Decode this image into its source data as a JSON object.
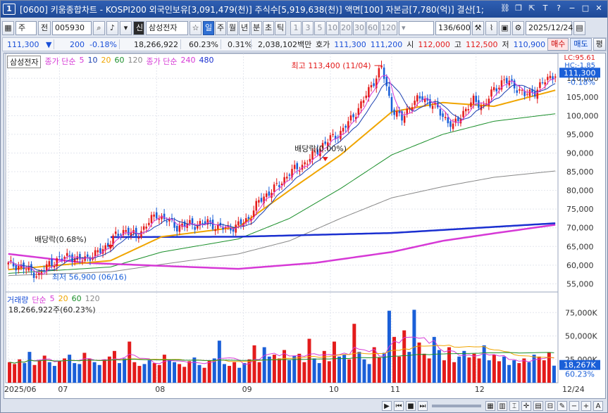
{
  "window": {
    "number": "1",
    "title": "[0600] 키움종합차트 - KOSPI200 외국인보유[3,091,479(천)] 주식수[5,919,638(천)] 액면[100] 자본금[7,780(억)] 결산[1;"
  },
  "toolbar": {
    "mode": "주",
    "all": "전",
    "code": "005930",
    "sin": "신",
    "name": "삼성전자",
    "periods": [
      "일",
      "주",
      "월",
      "년",
      "분",
      "초",
      "틱"
    ],
    "active_period": "일",
    "intervals": [
      "1",
      "3",
      "5",
      "10",
      "20",
      "30",
      "60",
      "120"
    ],
    "count": "136",
    "count_total": "/600",
    "date": "2025/12/24"
  },
  "quote": {
    "price": "111,300",
    "arrow": "▼",
    "change": "200",
    "change_pct": "-0.18%",
    "volume": "18,266,922",
    "volume_pct": "60.23%",
    "turnover_pct": "0.31%",
    "amount": "2,038,102백만",
    "hoga_label": "호가",
    "bid": "111,300",
    "ask": "111,200",
    "open_label": "시",
    "open": "112,000",
    "high_label": "고",
    "high": "112,500",
    "low_label": "저",
    "low": "110,900",
    "buy": "매수",
    "sell": "매도",
    "eval": "평"
  },
  "legend_price": {
    "name": "삼성전자",
    "ma_title": "종가 단순",
    "periods": [
      "5",
      "10",
      "20",
      "60",
      "120"
    ],
    "ma2_title": "종가 단순",
    "periods2": [
      "240",
      "480"
    ],
    "lc": "LC:95.61",
    "hc": "HC:-1.85"
  },
  "legend_volume": {
    "title": "거래량",
    "ma_title": "단순",
    "periods": [
      "5",
      "20",
      "60",
      "120"
    ],
    "value": "18,266,922주(60.23%)"
  },
  "annotations": {
    "high": "최고 113,400 (11/04)",
    "low": "최저 56,900 (06/16)",
    "div1": "배당락(0.68%)",
    "div2": "배당락(0.00%)"
  },
  "price_axis": {
    "ticks": [
      "110,000",
      "105,000",
      "100,000",
      "95,000",
      "90,000",
      "85,000",
      "80,000",
      "75,000",
      "70,000",
      "65,000",
      "60,000",
      "55,000"
    ],
    "current": "111,300",
    "current_pct": "-0.18%"
  },
  "volume_axis": {
    "ticks": [
      "75,000K",
      "50,000K",
      "25,000K"
    ],
    "current": "18,267K",
    "current_pct": "60.23%"
  },
  "date_axis": {
    "labels": [
      "2025/06",
      "07",
      "08",
      "09",
      "10",
      "11",
      "12"
    ],
    "end": "12/24"
  },
  "colors": {
    "up": "#e31b1b",
    "down": "#1a5fd8",
    "ma5": "#d639d6",
    "ma10": "#1a3fb0",
    "ma20": "#f0a500",
    "ma60": "#1a8f2a",
    "ma120": "#888888",
    "ma240": "#d639d6",
    "ma480": "#1a2fd0"
  },
  "chart_data": {
    "type": "candlestick",
    "period": "daily",
    "x_range": [
      "2025/06",
      "2025/12/24"
    ],
    "y_range": [
      53000,
      114000
    ],
    "last": {
      "open": 112000,
      "high": 112500,
      "low": 110900,
      "close": 111300,
      "volume": 18266922
    },
    "highest": {
      "value": 113400,
      "date": "11/04"
    },
    "lowest": {
      "value": 56900,
      "date": "06/16"
    },
    "close_path": [
      [
        0,
        60200
      ],
      [
        4,
        59800
      ],
      [
        8,
        58600
      ],
      [
        12,
        57200
      ],
      [
        16,
        60400
      ],
      [
        20,
        61500
      ],
      [
        24,
        62800
      ],
      [
        27,
        61200
      ],
      [
        30,
        61900
      ],
      [
        34,
        62800
      ],
      [
        38,
        64900
      ],
      [
        42,
        67800
      ],
      [
        46,
        69500
      ],
      [
        50,
        67500
      ],
      [
        54,
        70900
      ],
      [
        58,
        73500
      ],
      [
        62,
        72000
      ],
      [
        66,
        70200
      ],
      [
        70,
        71000
      ],
      [
        74,
        70800
      ],
      [
        78,
        71500
      ],
      [
        82,
        70100
      ],
      [
        86,
        69800
      ],
      [
        90,
        70600
      ],
      [
        94,
        72500
      ],
      [
        98,
        77000
      ],
      [
        102,
        79500
      ],
      [
        106,
        81500
      ],
      [
        110,
        84800
      ],
      [
        114,
        86200
      ],
      [
        118,
        88400
      ],
      [
        122,
        91600
      ],
      [
        126,
        93800
      ],
      [
        130,
        95500
      ],
      [
        134,
        99000
      ],
      [
        138,
        103000
      ],
      [
        142,
        108000
      ],
      [
        146,
        113000
      ],
      [
        150,
        102000
      ],
      [
        154,
        99000
      ],
      [
        158,
        103500
      ],
      [
        162,
        104800
      ],
      [
        166,
        103000
      ],
      [
        170,
        100000
      ],
      [
        174,
        97000
      ],
      [
        178,
        101000
      ],
      [
        182,
        104000
      ],
      [
        186,
        102500
      ],
      [
        190,
        107000
      ],
      [
        194,
        109500
      ],
      [
        198,
        108000
      ],
      [
        202,
        105500
      ],
      [
        206,
        106500
      ],
      [
        210,
        109300
      ],
      [
        214,
        111300
      ]
    ],
    "ma_series": {
      "ma20": [
        [
          0,
          58800
        ],
        [
          40,
          61200
        ],
        [
          60,
          67600
        ],
        [
          90,
          70200
        ],
        [
          110,
          80000
        ],
        [
          130,
          89500
        ],
        [
          150,
          101000
        ],
        [
          170,
          103500
        ],
        [
          190,
          102500
        ],
        [
          214,
          106800
        ]
      ],
      "ma60": [
        [
          0,
          57800
        ],
        [
          40,
          59500
        ],
        [
          60,
          63500
        ],
        [
          90,
          67000
        ],
        [
          110,
          72500
        ],
        [
          130,
          80500
        ],
        [
          150,
          89500
        ],
        [
          170,
          95000
        ],
        [
          190,
          98500
        ],
        [
          214,
          100500
        ]
      ],
      "ma120": [
        [
          0,
          57200
        ],
        [
          40,
          58200
        ],
        [
          60,
          60200
        ],
        [
          90,
          63000
        ],
        [
          110,
          66500
        ],
        [
          130,
          72500
        ],
        [
          150,
          78000
        ],
        [
          170,
          81000
        ],
        [
          190,
          83500
        ],
        [
          214,
          85200
        ]
      ],
      "ma240": [
        [
          0,
          63000
        ],
        [
          30,
          60600
        ],
        [
          60,
          59800
        ],
        [
          90,
          59000
        ],
        [
          120,
          60600
        ],
        [
          150,
          63500
        ],
        [
          170,
          66500
        ],
        [
          190,
          68500
        ],
        [
          214,
          70800
        ]
      ],
      "ma480": [
        [
          40,
          67500
        ],
        [
          90,
          67600
        ],
        [
          150,
          68600
        ],
        [
          214,
          71200
        ]
      ]
    },
    "volume_k": [
      22000,
      20000,
      25000,
      21000,
      33000,
      19000,
      24000,
      29000,
      22000,
      18000,
      23000,
      26000,
      30000,
      21000,
      20000,
      32000,
      26000,
      22000,
      19000,
      25000,
      28000,
      34000,
      21000,
      26000,
      44000,
      22000,
      18000,
      20000,
      24000,
      21000,
      19000,
      30000,
      25000,
      22000,
      20000,
      17000,
      23000,
      27000,
      19000,
      16000,
      24000,
      26000,
      45000,
      20000,
      18000,
      22000,
      16000,
      21000,
      25000,
      40000,
      22000,
      38000,
      28000,
      30000,
      26000,
      35000,
      24000,
      29000,
      31000,
      22000,
      47000,
      26000,
      21000,
      34000,
      23000,
      44000,
      28000,
      30000,
      25000,
      63000,
      33000,
      25000,
      20000,
      38000,
      27000,
      32000,
      77000,
      49000,
      28000,
      56000,
      33000,
      78000,
      43000,
      31000,
      26000,
      49000,
      35000,
      24000,
      38000,
      22000,
      28000,
      34000,
      27000,
      31000,
      26000,
      40000,
      24000,
      30000,
      23000,
      28000,
      19000,
      24000,
      21000,
      26000,
      22000,
      30000,
      28000,
      24000,
      32000,
      18267
    ]
  }
}
